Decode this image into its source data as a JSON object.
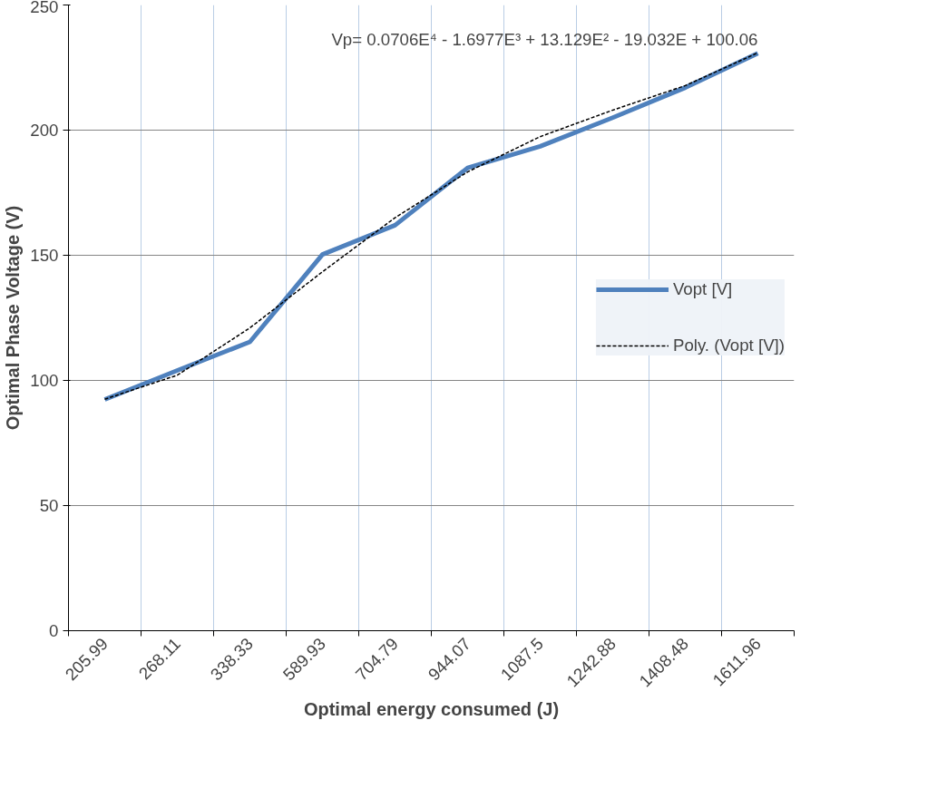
{
  "chart_data": {
    "type": "line",
    "xlabel": "Optimal energy consumed (J)",
    "ylabel": "Optimal Phase Voltage (V)",
    "categories": [
      "205.99",
      "268.11",
      "338.33",
      "589.93",
      "704.79",
      "944.07",
      "1087.5",
      "1242.88",
      "1408.48",
      "1611.96"
    ],
    "series": [
      {
        "name": "Vopt [V]",
        "color": "#4f81bd",
        "values": [
          92.4,
          104,
          115.4,
          150.3,
          162,
          184.9,
          193.5,
          205,
          217,
          230.7
        ],
        "line_style": "solid"
      },
      {
        "name": "Poly. (Vopt [V])",
        "color": "#000000",
        "values": [
          92.5,
          102.1,
          121,
          143.4,
          165,
          183.3,
          197.4,
          208,
          217.8,
          230.9
        ],
        "line_style": "dashed"
      }
    ],
    "ylim": [
      0,
      250
    ],
    "yticks": [
      0,
      50,
      100,
      150,
      200,
      250
    ],
    "grid": true,
    "legend": "right",
    "marker": "none",
    "annotations": [
      "Vp= 0.0706E⁴ - 1.6977E³ + 13.129E² - 19.032E + 100.06"
    ]
  }
}
